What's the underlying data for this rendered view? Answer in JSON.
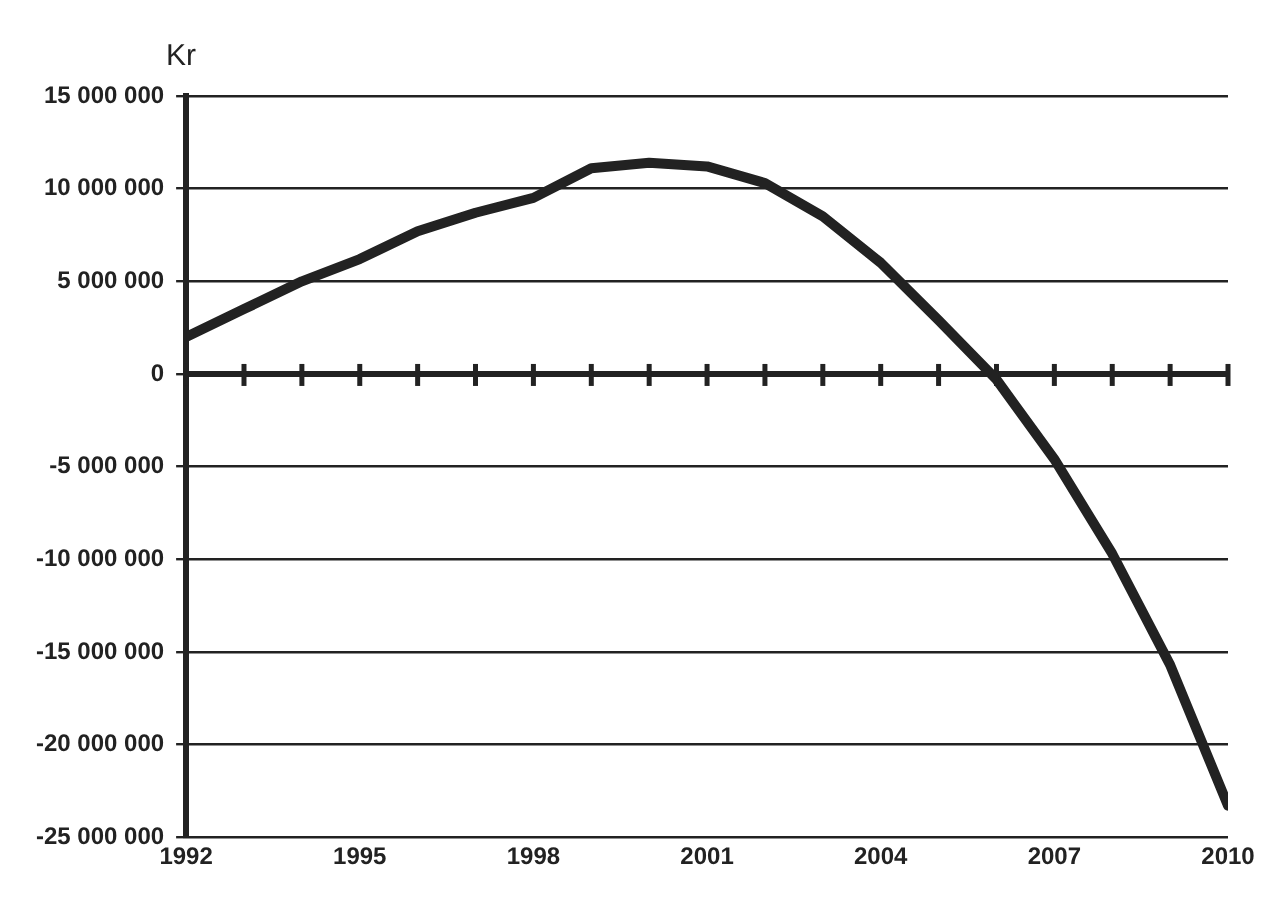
{
  "chart_data": {
    "type": "line",
    "ylabel": "Kr",
    "x": [
      1992,
      1993,
      1994,
      1995,
      1996,
      1997,
      1998,
      1999,
      2000,
      2001,
      2002,
      2003,
      2004,
      2005,
      2006,
      2007,
      2008,
      2009,
      2010
    ],
    "series": [
      {
        "color": "#222222",
        "values": [
          2000000,
          3500000,
          5000000,
          6200000,
          7700000,
          8700000,
          9500000,
          11100000,
          11400000,
          11200000,
          10300000,
          8500000,
          6000000,
          2900000,
          -300000,
          -4600000,
          -9700000,
          -15700000,
          -23300000
        ]
      }
    ],
    "xlim": [
      1992,
      2010
    ],
    "xticks": [
      1992,
      {
        "value": 1993,
        "label": null
      },
      {
        "value": 1994,
        "label": null
      },
      1995,
      {
        "value": 1996,
        "label": null
      },
      {
        "value": 1997,
        "label": null
      },
      1998,
      {
        "value": 1999,
        "label": null
      },
      {
        "value": 2000,
        "label": null
      },
      2001,
      {
        "value": 2002,
        "label": null
      },
      {
        "value": 2003,
        "label": null
      },
      2004,
      {
        "value": 2005,
        "label": null
      },
      {
        "value": 2006,
        "label": null
      },
      2007,
      {
        "value": 2008,
        "label": null
      },
      {
        "value": 2009,
        "label": null
      },
      2010
    ],
    "ylim": [
      -25000000,
      15000000
    ],
    "yticks": [
      {
        "value": 15000000,
        "label": "15 000 000"
      },
      {
        "value": 10000000,
        "label": "10 000 000"
      },
      {
        "value": 5000000,
        "label": "5 000 000"
      },
      0,
      {
        "value": -5000000,
        "label": "-5 000 000"
      },
      {
        "value": -10000000,
        "label": "-10 000 000"
      },
      {
        "value": -15000000,
        "label": "-15 000 000"
      },
      {
        "value": -20000000,
        "label": "-20 000 000"
      },
      {
        "value": -25000000,
        "label": "-25 000 000"
      }
    ],
    "grid": "y",
    "legend": false,
    "marker": "none",
    "line_style": "solid"
  }
}
